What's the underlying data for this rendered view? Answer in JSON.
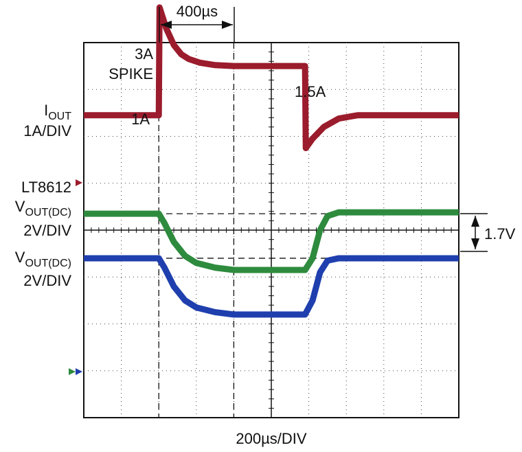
{
  "chart_data": {
    "type": "line",
    "x_axis": {
      "label": "200µs/DIV",
      "divisions": 10
    },
    "y_axis": {
      "divisions": 8
    },
    "grid": true,
    "timing_annotation": "400µs",
    "delta_annotation": "1.7V",
    "channel_labels": {
      "iout_main": "I",
      "iout_sub": "OUT",
      "iout_scale": "1A/DIV",
      "device": "LT8612",
      "vout1_main": "V",
      "vout1_sub": "OUT(DC)",
      "vout1_scale": "2V/DIV",
      "vout2_main": "V",
      "vout2_sub": "OUT(DC)",
      "vout2_scale": "2V/DIV"
    },
    "annotations": {
      "spike_line1": "3A",
      "spike_line2": "SPIKE",
      "step_low": "1A",
      "step_high": "1.5A"
    },
    "series": [
      {
        "name": "IOUT",
        "color": "#9b1c2c",
        "points": [
          [
            0,
            2.45
          ],
          [
            2.0,
            2.45
          ],
          [
            2.02,
            4.75
          ],
          [
            2.2,
            4.3
          ],
          [
            2.4,
            3.95
          ],
          [
            2.6,
            3.75
          ],
          [
            2.8,
            3.65
          ],
          [
            3.1,
            3.57
          ],
          [
            3.5,
            3.52
          ],
          [
            4.0,
            3.5
          ],
          [
            5.9,
            3.5
          ],
          [
            5.92,
            1.75
          ],
          [
            6.1,
            1.95
          ],
          [
            6.4,
            2.2
          ],
          [
            6.8,
            2.38
          ],
          [
            7.3,
            2.45
          ],
          [
            10,
            2.45
          ]
        ]
      },
      {
        "name": "VOUT(DC) green",
        "color": "#2e8b3e",
        "points": [
          [
            0,
            0.35
          ],
          [
            2.0,
            0.35
          ],
          [
            2.15,
            0.15
          ],
          [
            2.4,
            -0.25
          ],
          [
            2.7,
            -0.55
          ],
          [
            3.0,
            -0.7
          ],
          [
            3.5,
            -0.8
          ],
          [
            4.0,
            -0.85
          ],
          [
            5.9,
            -0.85
          ],
          [
            6.1,
            -0.6
          ],
          [
            6.3,
            0.0
          ],
          [
            6.5,
            0.3
          ],
          [
            6.8,
            0.38
          ],
          [
            10,
            0.38
          ]
        ]
      },
      {
        "name": "VOUT(DC) blue",
        "color": "#1f3fae",
        "points": [
          [
            0,
            -0.6
          ],
          [
            2.0,
            -0.6
          ],
          [
            2.15,
            -0.8
          ],
          [
            2.4,
            -1.2
          ],
          [
            2.7,
            -1.5
          ],
          [
            3.0,
            -1.65
          ],
          [
            3.5,
            -1.75
          ],
          [
            4.0,
            -1.8
          ],
          [
            5.9,
            -1.8
          ],
          [
            6.1,
            -1.5
          ],
          [
            6.3,
            -0.9
          ],
          [
            6.5,
            -0.65
          ],
          [
            6.8,
            -0.6
          ],
          [
            10,
            -0.6
          ]
        ]
      }
    ],
    "reference_levels": [
      0.35,
      -0.6
    ],
    "marker_colors": {
      "iout": "#9b1c2c",
      "green": "#2e8b3e",
      "blue": "#1f3fae"
    }
  }
}
